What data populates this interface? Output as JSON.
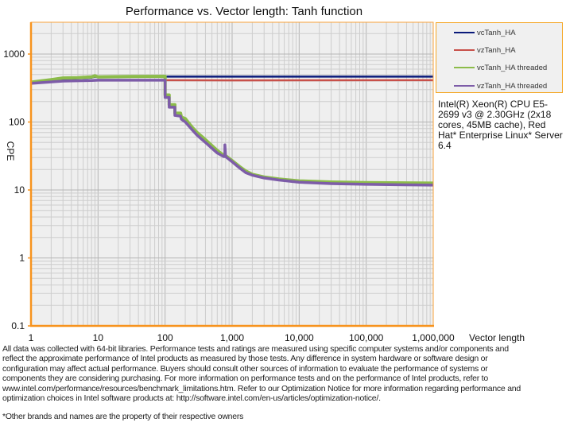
{
  "chart_data": {
    "type": "line",
    "title": "Performance vs. Vector length: Tanh function",
    "xlabel": "Vector length",
    "ylabel": "CPE",
    "xscale": "log",
    "yscale": "log",
    "xlim": [
      1,
      1000000
    ],
    "ylim": [
      0.1,
      3000
    ],
    "grid": true,
    "legend_position": "right",
    "x_ticks": [
      1,
      10,
      100,
      1000,
      10000,
      100000,
      1000000
    ],
    "x_tick_labels": [
      "1",
      "10",
      "100",
      "1,000",
      "10,000",
      "100,000",
      "1,000,000"
    ],
    "y_ticks": [
      0.1,
      1,
      10,
      100,
      1000
    ],
    "y_tick_labels": [
      "0.1",
      "1",
      "10",
      "100",
      "1000"
    ],
    "series": [
      {
        "name": "vcTanh_HA",
        "color": "#0a1a7a",
        "points": [
          [
            1,
            380
          ],
          [
            2,
            405
          ],
          [
            3,
            425
          ],
          [
            5,
            440
          ],
          [
            8,
            450
          ],
          [
            9,
            465
          ],
          [
            10,
            455
          ],
          [
            30,
            460
          ],
          [
            100,
            465
          ],
          [
            1000,
            465
          ],
          [
            1000000,
            465
          ]
        ]
      },
      {
        "name": "vzTanh_HA",
        "color": "#c8504a",
        "points": [
          [
            1,
            375
          ],
          [
            3,
            400
          ],
          [
            8,
            408
          ],
          [
            10,
            412
          ],
          [
            100,
            412
          ],
          [
            1000,
            410
          ],
          [
            1000000,
            412
          ]
        ]
      },
      {
        "name": "vcTanh_HA threaded",
        "color": "#8cbc4a",
        "points": [
          [
            1,
            385
          ],
          [
            2,
            420
          ],
          [
            3,
            445
          ],
          [
            5,
            450
          ],
          [
            8,
            460
          ],
          [
            9,
            480
          ],
          [
            10,
            460
          ],
          [
            30,
            468
          ],
          [
            100,
            470
          ],
          [
            100,
            250
          ],
          [
            115,
            250
          ],
          [
            115,
            180
          ],
          [
            140,
            180
          ],
          [
            140,
            135
          ],
          [
            170,
            135
          ],
          [
            175,
            118
          ],
          [
            200,
            112
          ],
          [
            250,
            85
          ],
          [
            300,
            70
          ],
          [
            400,
            55
          ],
          [
            500,
            45
          ],
          [
            600,
            38
          ],
          [
            700,
            34
          ],
          [
            800,
            32
          ],
          [
            1000,
            27
          ],
          [
            1300,
            22
          ],
          [
            1600,
            19
          ],
          [
            2000,
            17
          ],
          [
            3000,
            15.5
          ],
          [
            5000,
            14.5
          ],
          [
            10000,
            13.6
          ],
          [
            30000,
            13.1
          ],
          [
            100000,
            12.8
          ],
          [
            1000000,
            12.6
          ]
        ]
      },
      {
        "name": "vzTanh_HA threaded",
        "color": "#7d5ca8",
        "points": [
          [
            1,
            370
          ],
          [
            3,
            400
          ],
          [
            8,
            408
          ],
          [
            10,
            412
          ],
          [
            100,
            412
          ],
          [
            100,
            230
          ],
          [
            115,
            230
          ],
          [
            115,
            165
          ],
          [
            140,
            165
          ],
          [
            140,
            125
          ],
          [
            170,
            122
          ],
          [
            175,
            110
          ],
          [
            200,
            100
          ],
          [
            250,
            78
          ],
          [
            300,
            64
          ],
          [
            400,
            50
          ],
          [
            500,
            41
          ],
          [
            600,
            35
          ],
          [
            750,
            31
          ],
          [
            780,
            31
          ],
          [
            780,
            46
          ],
          [
            800,
            31
          ],
          [
            1000,
            26
          ],
          [
            1300,
            21
          ],
          [
            1600,
            18
          ],
          [
            2000,
            16.5
          ],
          [
            3000,
            15
          ],
          [
            5000,
            14
          ],
          [
            10000,
            13
          ],
          [
            30000,
            12.4
          ],
          [
            100000,
            12.1
          ],
          [
            1000000,
            11.8
          ]
        ]
      }
    ]
  },
  "legend": {
    "items": [
      "vcTanh_HA",
      "vzTanh_HA",
      "vcTanh_HA threaded",
      "vzTanh_HA threaded"
    ]
  },
  "system_info": "Intel(R) Xeon(R) CPU E5-2699 v3 @ 2.30GHz (2x18 cores, 45MB cache), Red Hat* Enterprise Linux* Server 6.4",
  "disclaimer": [
    "All data was collected with 64-bit libraries. Performance tests and ratings are measured  using specific computer systems and/or components  and",
    "reflect the approximate  performance of Intel products as measured by those tests.  Any difference in system hardware or software design or",
    "configuration may affect actual performance. Buyers should  consult other sources of information to evaluate  the performance of systems or",
    "components they are considering purchasing. For more information on performance tests and on the performance of Intel products, refer to",
    "www.intel.com/performance/resources/benchmark_limitations.htm.  Refer to our Optimization  Notice for more information regarding performance and",
    "optimization  choices in Intel software products at: http://software.intel.com/en-us/articles/optimization-notice/."
  ],
  "trademark_note": "*Other brands and names are the property of their respective owners"
}
